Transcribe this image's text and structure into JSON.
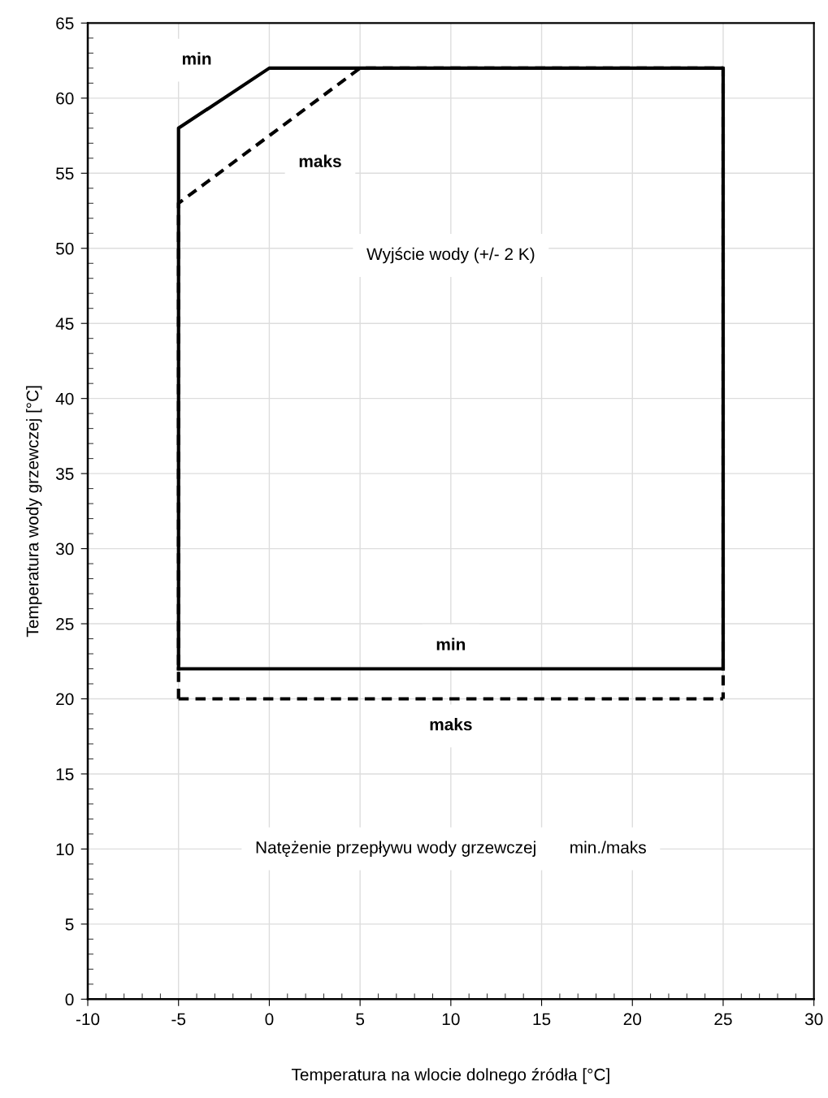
{
  "chart_data": {
    "type": "line",
    "xlabel": "Temperatura na wlocie dolnego źródła [°C]",
    "ylabel": "Temperatura wody grzewczej [°C]",
    "series": [
      {
        "x": [
          -5,
          -5,
          5,
          25,
          25
        ],
        "values": [
          20,
          53,
          62,
          62,
          20
        ],
        "color": "#000000",
        "line_style": "dashed"
      },
      {
        "x": [
          -5,
          25
        ],
        "values": [
          20,
          20
        ],
        "color": "#000000",
        "line_style": "dashed"
      },
      {
        "x": [
          -5,
          -5,
          0,
          25,
          25
        ],
        "values": [
          22,
          58,
          62,
          62,
          22
        ],
        "color": "#000000",
        "line_style": "solid"
      },
      {
        "x": [
          -5,
          25
        ],
        "values": [
          22,
          22
        ],
        "color": "#000000",
        "line_style": "solid"
      }
    ],
    "xlim": [
      -10,
      30
    ],
    "xticks": [
      -10,
      -5,
      0,
      5,
      10,
      15,
      20,
      25,
      30
    ],
    "ylim": [
      0,
      65
    ],
    "yticks": [
      0,
      5,
      10,
      15,
      20,
      25,
      30,
      35,
      40,
      45,
      50,
      55,
      60,
      65
    ],
    "grid": true,
    "marker": "none",
    "annotations": [
      "min",
      "maks",
      "min",
      "maks",
      "Wyjście wody (+/- 2 K)",
      "Natężenie przepływu wody grzewczej       min./maks"
    ]
  }
}
